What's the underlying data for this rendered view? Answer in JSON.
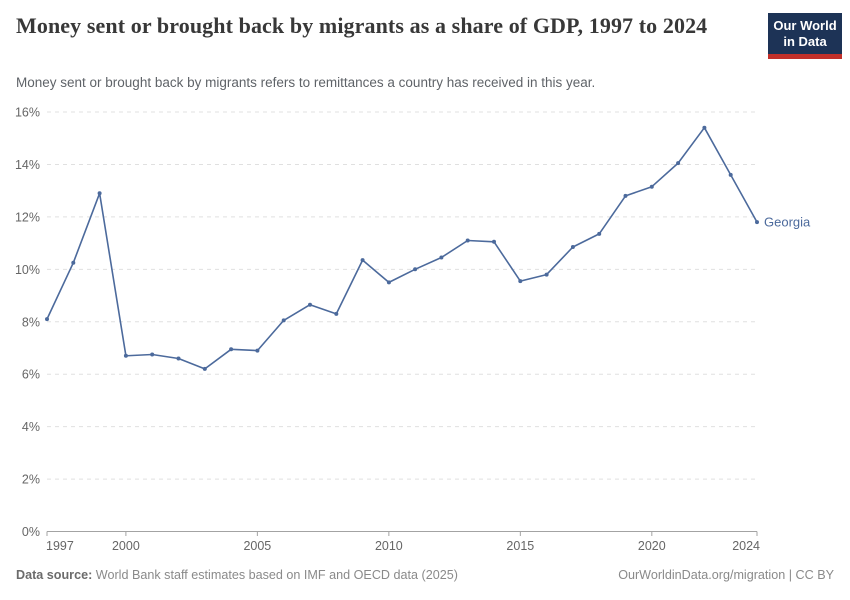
{
  "header": {
    "title": "Money sent or brought back by migrants as a share of GDP, 1997 to 2024",
    "subtitle": "Money sent or brought back by migrants refers to remittances a country has received in this year."
  },
  "logo": {
    "line1": "Our World",
    "line2": "in Data",
    "bg_color": "#1d3356",
    "bar_color": "#c2302a"
  },
  "footer": {
    "source_label": "Data source:",
    "source_text": " World Bank staff estimates based on IMF and OECD data (2025)",
    "credit": "OurWorldinData.org/migration | CC BY"
  },
  "chart_data": {
    "type": "line",
    "title": "Money sent or brought back by migrants as a share of GDP, 1997 to 2024",
    "subtitle": "Money sent or brought back by migrants refers to remittances a country has received in this year.",
    "entity": "Georgia",
    "unit": "%",
    "x": [
      1997,
      1998,
      1999,
      2000,
      2001,
      2002,
      2003,
      2004,
      2005,
      2006,
      2007,
      2008,
      2009,
      2010,
      2011,
      2012,
      2013,
      2014,
      2015,
      2016,
      2017,
      2018,
      2019,
      2020,
      2021,
      2022,
      2023,
      2024
    ],
    "series": [
      {
        "name": "Georgia",
        "values": [
          8.1,
          10.25,
          12.9,
          6.7,
          6.75,
          6.6,
          6.2,
          6.95,
          6.9,
          8.05,
          8.65,
          8.3,
          10.35,
          9.5,
          10.0,
          10.45,
          11.1,
          11.05,
          9.55,
          9.8,
          10.85,
          11.35,
          12.8,
          13.15,
          14.05,
          15.4,
          13.6,
          11.8
        ]
      }
    ],
    "ylim": [
      0,
      16
    ],
    "ytick_step": 2,
    "xticks": [
      1997,
      2000,
      2005,
      2010,
      2015,
      2020,
      2024
    ],
    "grid": "dashed horizontal",
    "legend": "end-of-line label",
    "line_color": "#4c6a9c",
    "colors": {
      "grid": "#e0e0e0",
      "axis": "#a3a3a3",
      "tick_label": "#666666"
    }
  }
}
